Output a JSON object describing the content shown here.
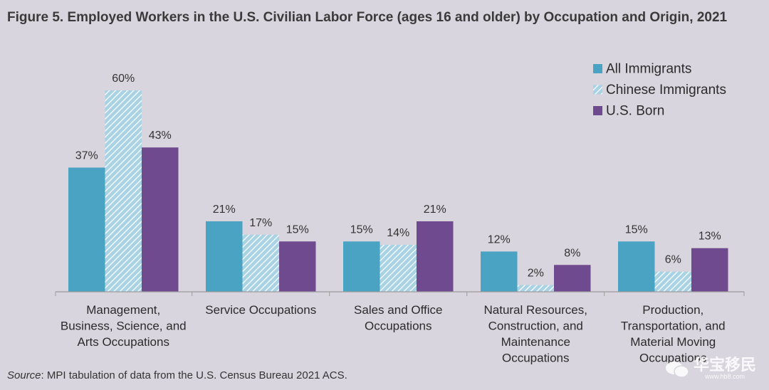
{
  "title": "Figure 5. Employed Workers in the U.S. Civilian Labor Force (ages 16 and older) by Occupation and Origin, 2021",
  "source": {
    "label": "Source",
    "text": ": MPI tabulation of data from the U.S. Census Bureau 2021 ACS."
  },
  "watermark": {
    "text": "华宝移民",
    "url": "www.hb8.com"
  },
  "colors": {
    "all_immigrants": "#4aa3c2",
    "chinese_immigrants": "#a9d3e4",
    "chinese_stripe": "#ffffff",
    "us_born": "#6f4a8e",
    "axis": "#9a9a9a",
    "background": "#d9d5de"
  },
  "chart_data": {
    "type": "bar",
    "title": "Figure 5. Employed Workers in the U.S. Civilian Labor Force (ages 16 and older) by Occupation and Origin, 2021",
    "categories": [
      [
        "Management,",
        "Business, Science, and",
        "Arts Occupations"
      ],
      [
        "Service Occupations"
      ],
      [
        "Sales and Office",
        "Occupations"
      ],
      [
        "Natural Resources,",
        "Construction, and",
        "Maintenance",
        "Occupations"
      ],
      [
        "Production,",
        "Transportation, and",
        "Material Moving",
        "Occupations"
      ]
    ],
    "series": [
      {
        "name": "All Immigrants",
        "values": [
          37,
          21,
          15,
          12,
          15
        ],
        "labels": [
          "37%",
          "21%",
          "15%",
          "12%",
          "15%"
        ],
        "pattern": "solid"
      },
      {
        "name": "Chinese Immigrants",
        "values": [
          60,
          17,
          14,
          2,
          6
        ],
        "labels": [
          "60%",
          "17%",
          "14%",
          "2%",
          "6%"
        ],
        "pattern": "hatched"
      },
      {
        "name": "U.S. Born",
        "values": [
          43,
          15,
          21,
          8,
          13
        ],
        "labels": [
          "43%",
          "15%",
          "21%",
          "8%",
          "13%"
        ],
        "pattern": "solid"
      }
    ],
    "ylim": [
      0,
      60
    ],
    "xlabel": "",
    "ylabel": "",
    "grid": false,
    "legend_position": "top-right"
  }
}
